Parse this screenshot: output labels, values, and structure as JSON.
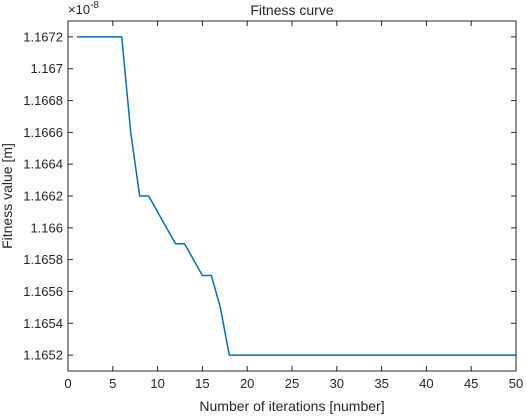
{
  "chart_data": {
    "type": "line",
    "title": "Fitness curve",
    "xlabel": "Number of iterations [number]",
    "ylabel": "Fitness value [m]",
    "y_exponent_label": "×10",
    "y_exponent_power": "-8",
    "xlim": [
      0,
      50
    ],
    "ylim": [
      1.1651,
      1.1673
    ],
    "grid": false,
    "x_ticks": [
      0,
      5,
      10,
      15,
      20,
      25,
      30,
      35,
      40,
      45,
      50
    ],
    "x_tick_labels": [
      "0",
      "5",
      "10",
      "15",
      "20",
      "25",
      "30",
      "35",
      "40",
      "45",
      "50"
    ],
    "y_ticks": [
      1.1652,
      1.1654,
      1.1656,
      1.1658,
      1.166,
      1.1662,
      1.1664,
      1.1666,
      1.1668,
      1.167,
      1.1672
    ],
    "y_tick_labels": [
      "1.1652",
      "1.1654",
      "1.1656",
      "1.1658",
      "1.166",
      "1.1662",
      "1.1664",
      "1.1666",
      "1.1668",
      "1.167",
      "1.1672"
    ],
    "series": [
      {
        "color": "#0072BD",
        "x": [
          1,
          2,
          3,
          4,
          5,
          6,
          7,
          8,
          9,
          10,
          11,
          12,
          13,
          14,
          15,
          16,
          17,
          18,
          19,
          20,
          21,
          22,
          23,
          24,
          25,
          26,
          27,
          28,
          29,
          30,
          31,
          32,
          33,
          34,
          35,
          36,
          37,
          38,
          39,
          40,
          41,
          42,
          43,
          44,
          45,
          46,
          47,
          48,
          49,
          50
        ],
        "values": [
          1.1672,
          1.1672,
          1.1672,
          1.1672,
          1.1672,
          1.1672,
          1.1666,
          1.1662,
          1.1662,
          1.1661,
          1.166,
          1.1659,
          1.1659,
          1.1658,
          1.1657,
          1.1657,
          1.1655,
          1.1652,
          1.1652,
          1.1652,
          1.1652,
          1.1652,
          1.1652,
          1.1652,
          1.1652,
          1.1652,
          1.1652,
          1.1652,
          1.1652,
          1.1652,
          1.1652,
          1.1652,
          1.1652,
          1.1652,
          1.1652,
          1.1652,
          1.1652,
          1.1652,
          1.1652,
          1.1652,
          1.1652,
          1.1652,
          1.1652,
          1.1652,
          1.1652,
          1.1652,
          1.1652,
          1.1652,
          1.1652,
          1.1652
        ]
      }
    ]
  }
}
